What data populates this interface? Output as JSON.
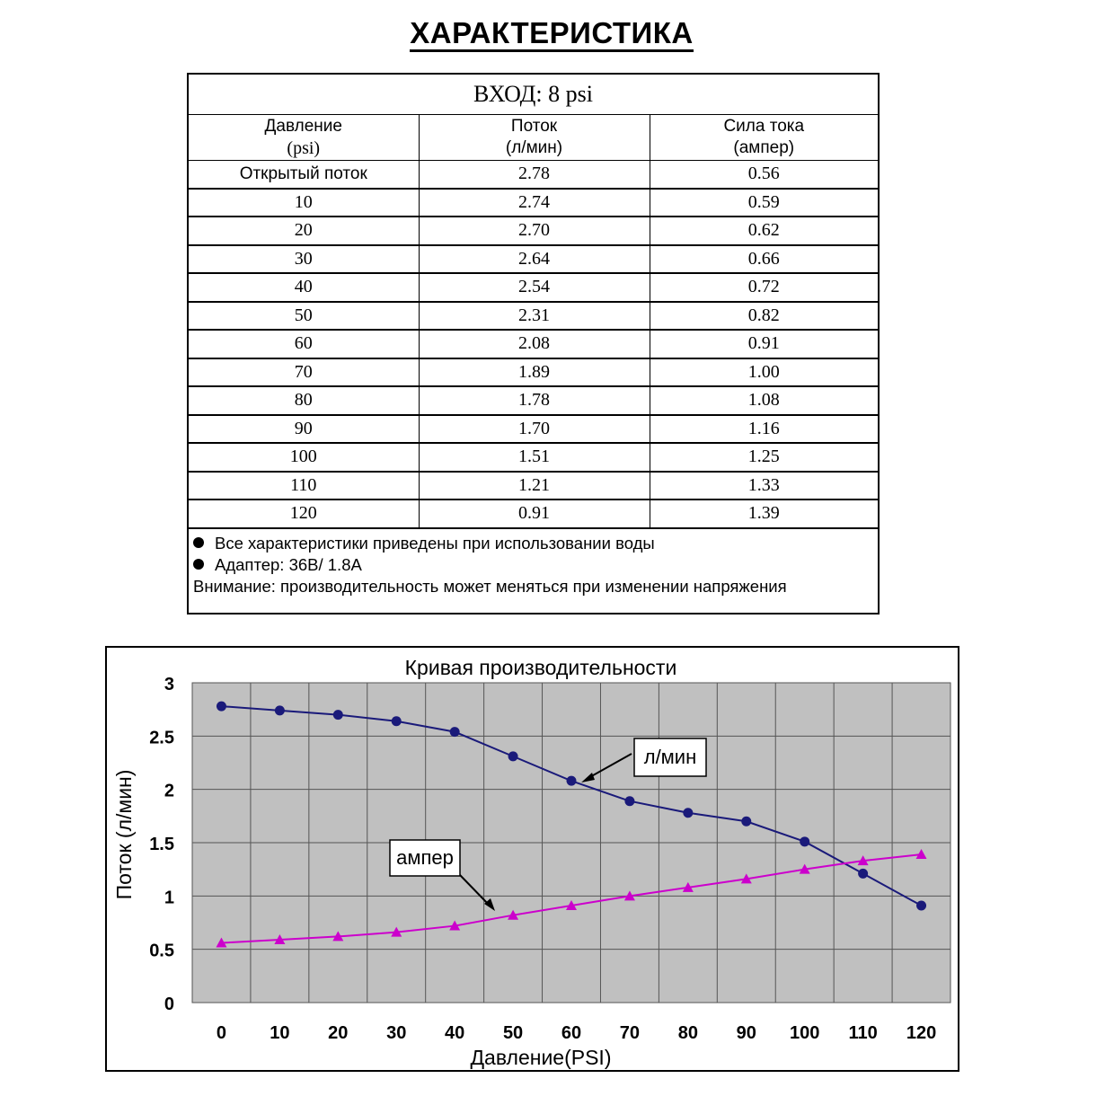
{
  "page_title": "ХАРАКТЕРИСТИКА",
  "table": {
    "input_label": "ВХОД: 8 psi",
    "headers": [
      {
        "label": "Давление",
        "unit": "(psi)"
      },
      {
        "label": "Поток",
        "unit": "(л/мин)"
      },
      {
        "label": "Сила тока",
        "unit": "(ампер)"
      }
    ],
    "rows": [
      [
        "Открытый поток",
        "2.78",
        "0.56"
      ],
      [
        "10",
        "2.74",
        "0.59"
      ],
      [
        "20",
        "2.70",
        "0.62"
      ],
      [
        "30",
        "2.64",
        "0.66"
      ],
      [
        "40",
        "2.54",
        "0.72"
      ],
      [
        "50",
        "2.31",
        "0.82"
      ],
      [
        "60",
        "2.08",
        "0.91"
      ],
      [
        "70",
        "1.89",
        "1.00"
      ],
      [
        "80",
        "1.78",
        "1.08"
      ],
      [
        "90",
        "1.70",
        "1.16"
      ],
      [
        "100",
        "1.51",
        "1.25"
      ],
      [
        "110",
        "1.21",
        "1.33"
      ],
      [
        "120",
        "0.91",
        "1.39"
      ]
    ],
    "notes": [
      "Все характеристики приведены при использовании воды",
      "Адаптер: 36В/ 1.8А",
      "Внимание: производительность может меняться при изменении напряжения"
    ]
  },
  "chart_data": {
    "type": "line",
    "title": "Кривая производительности",
    "xlabel": "Давление(PSI)",
    "ylabel": "Поток (л/мин)",
    "x": [
      0,
      10,
      20,
      30,
      40,
      50,
      60,
      70,
      80,
      90,
      100,
      110,
      120
    ],
    "ylim": [
      0,
      3
    ],
    "y_ticks": [
      "0",
      "0.5",
      "1",
      "1.5",
      "2",
      "2.5",
      "3"
    ],
    "x_ticks": [
      "0",
      "10",
      "20",
      "30",
      "40",
      "50",
      "60",
      "70",
      "80",
      "90",
      "100",
      "110",
      "120"
    ],
    "grid": true,
    "plot_background": "#c0c0c0",
    "series": [
      {
        "name": "л/мин",
        "marker": "circle",
        "color": "#1a1a7a",
        "values": [
          2.78,
          2.74,
          2.7,
          2.64,
          2.54,
          2.31,
          2.08,
          1.89,
          1.78,
          1.7,
          1.51,
          1.21,
          0.91
        ]
      },
      {
        "name": "ампер",
        "marker": "triangle",
        "color": "#cc00cc",
        "values": [
          0.56,
          0.59,
          0.62,
          0.66,
          0.72,
          0.82,
          0.91,
          1.0,
          1.08,
          1.16,
          1.25,
          1.33,
          1.39
        ]
      }
    ],
    "annotations": [
      "л/мин",
      "ампер"
    ]
  }
}
